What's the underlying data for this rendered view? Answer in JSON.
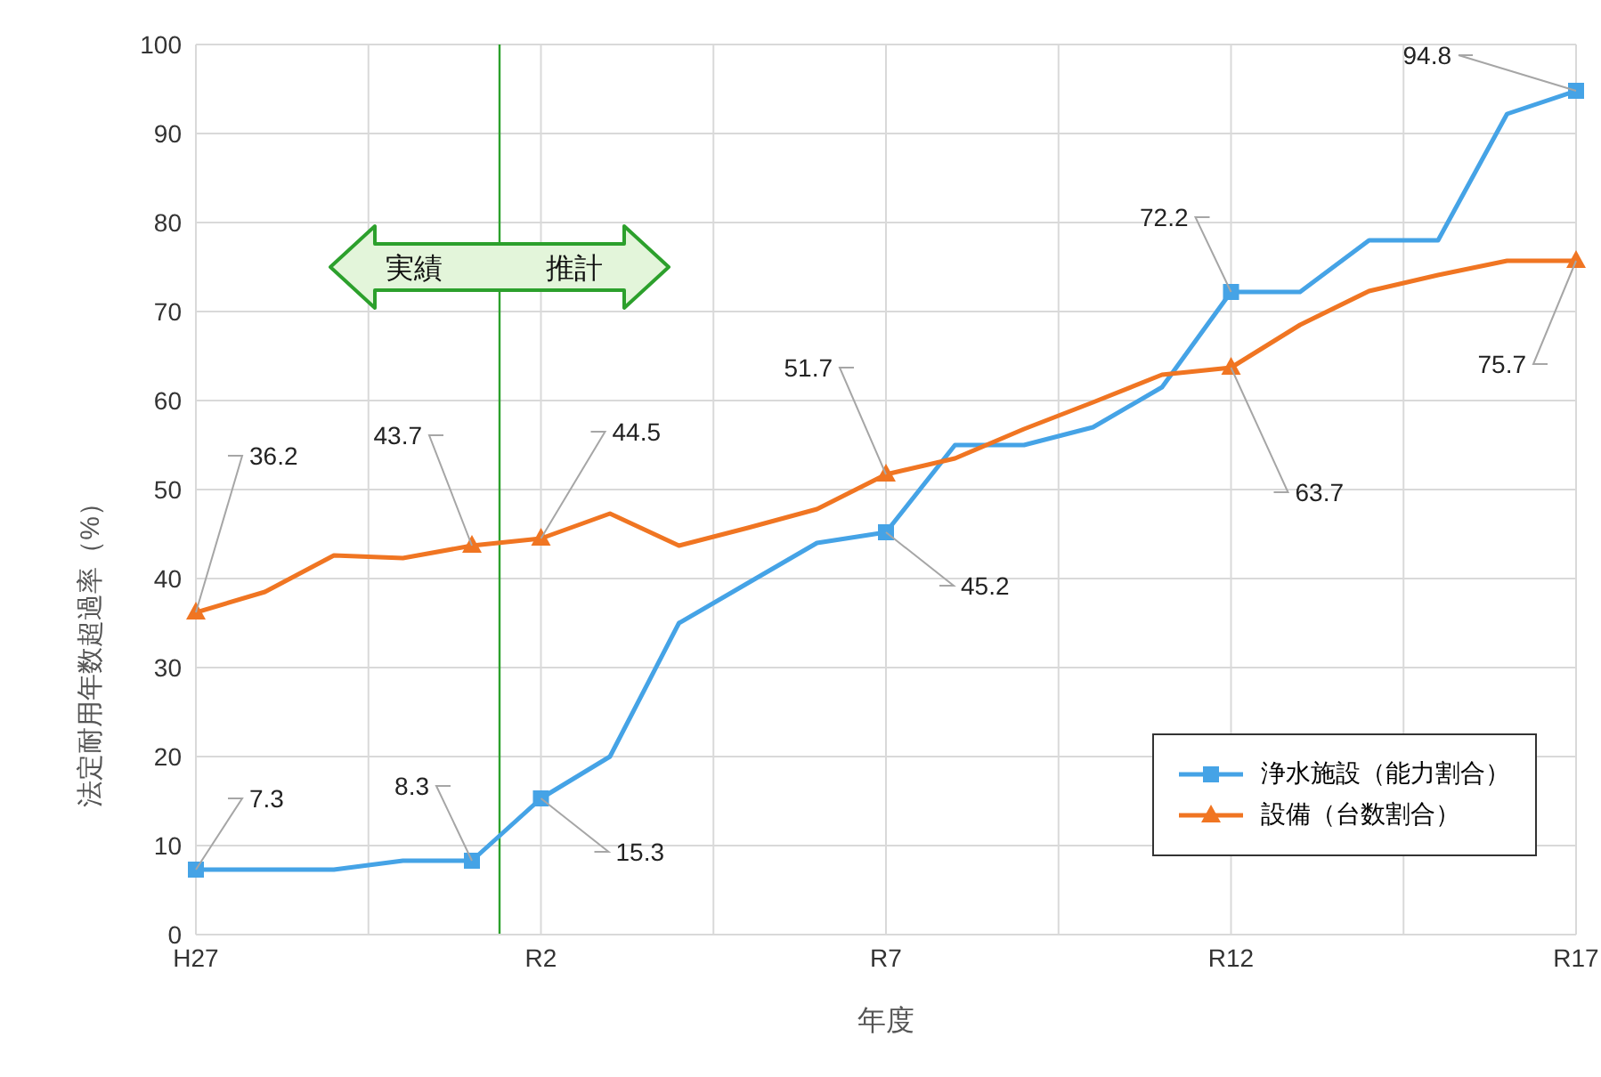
{
  "chart_data": {
    "type": "line",
    "xlabel": "年度",
    "ylabel": "法定耐用年数超過率（%）",
    "categories": [
      "H27",
      null,
      null,
      null,
      null,
      "R2",
      null,
      null,
      null,
      null,
      "R7",
      null,
      null,
      null,
      null,
      "R12",
      null,
      null,
      null,
      null,
      "R17"
    ],
    "ylim": [
      0,
      100
    ],
    "yticks": [
      0,
      10,
      20,
      30,
      40,
      50,
      60,
      70,
      80,
      90,
      100
    ],
    "grid": true,
    "legend": "bottom right",
    "series": [
      {
        "name": "浄水施設（能力割合）",
        "color": "#45a3e6",
        "values": [
          7.3,
          7.3,
          7.3,
          8.3,
          8.3,
          15.3,
          20,
          35,
          39.5,
          44,
          45.2,
          55,
          55,
          57,
          61.5,
          72.2,
          72.2,
          78,
          78,
          92.2,
          94.8
        ],
        "value_labels": [
          "7.3",
          null,
          null,
          null,
          "8.3",
          "15.3",
          null,
          null,
          null,
          null,
          "45.2",
          null,
          null,
          null,
          null,
          "72.2",
          null,
          null,
          null,
          null,
          "94.8"
        ]
      },
      {
        "name": "設備（台数割合）",
        "color": "#f07522",
        "values": [
          36.2,
          38.5,
          42.6,
          42.3,
          43.7,
          44.5,
          47.3,
          43.7,
          45.7,
          47.8,
          51.7,
          53.5,
          56.8,
          59.8,
          62.9,
          63.7,
          68.5,
          72.3,
          74.1,
          75.7,
          75.7
        ],
        "value_labels": [
          "36.2",
          null,
          null,
          null,
          "43.7",
          "44.5",
          null,
          null,
          null,
          null,
          "51.7",
          null,
          null,
          null,
          null,
          "63.7",
          null,
          null,
          null,
          null,
          "75.7"
        ]
      }
    ],
    "annotations": [
      "実績",
      "推計"
    ]
  }
}
